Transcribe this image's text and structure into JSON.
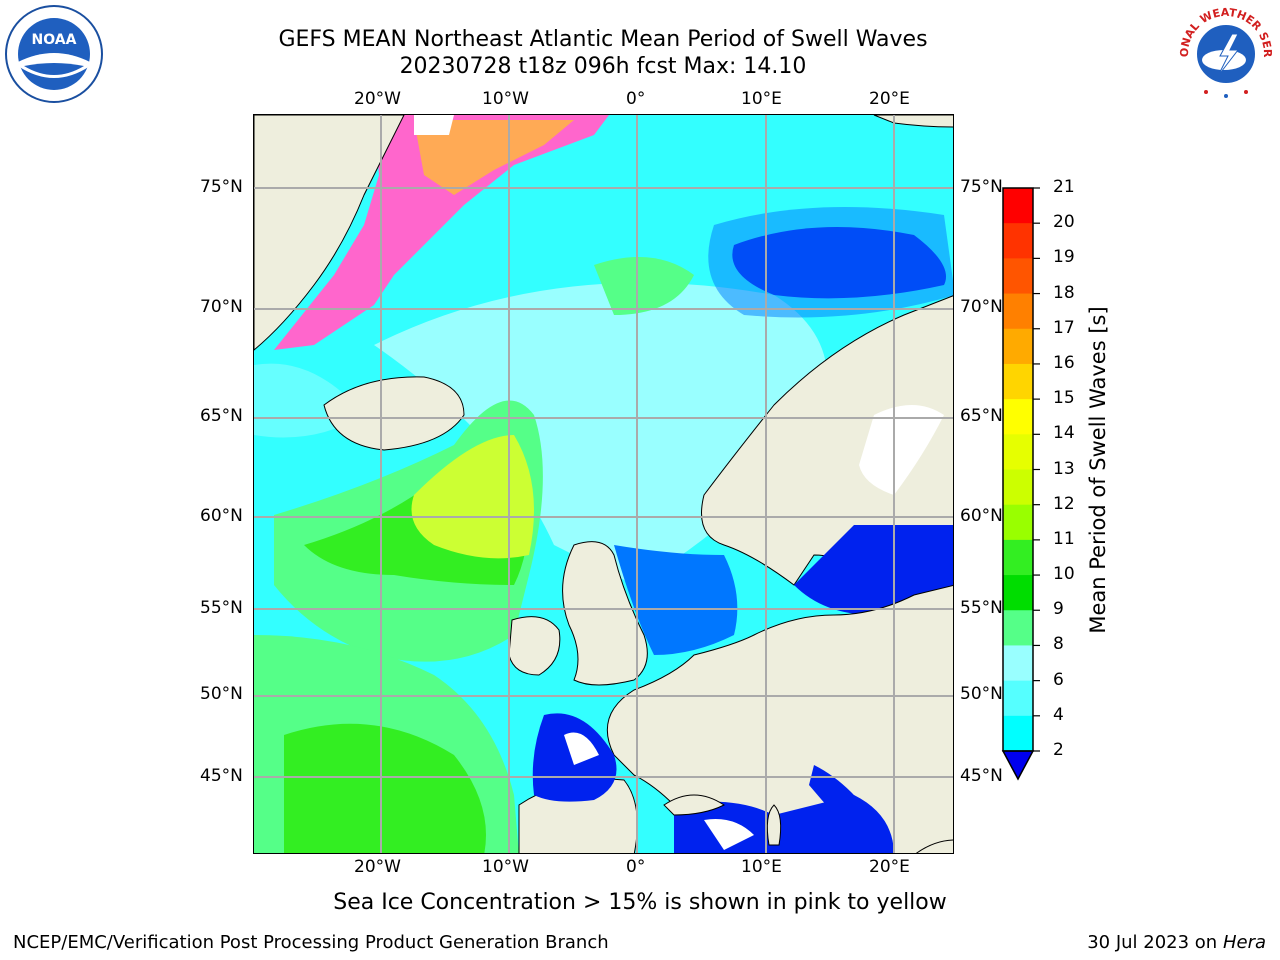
{
  "title": {
    "line1": "GEFS MEAN Northeast Atlantic Mean Period of Swell Waves",
    "line2": "20230728 t18z 096h fcst   Max: 14.10"
  },
  "axes": {
    "lon_top": [
      "20°W",
      "10°W",
      "0°",
      "10°E",
      "20°E"
    ],
    "lon_bottom": [
      "20°W",
      "10°W",
      "0°",
      "10°E",
      "20°E"
    ],
    "lat_left": [
      "75°N",
      "70°N",
      "65°N",
      "60°N",
      "55°N",
      "50°N",
      "45°N"
    ],
    "lat_right": [
      "75°N",
      "70°N",
      "65°N",
      "60°N",
      "55°N",
      "50°N",
      "45°N"
    ]
  },
  "colorbar": {
    "title": "Mean Period of Swell Waves [s]",
    "ticks": [
      "21",
      "20",
      "19",
      "18",
      "17",
      "16",
      "15",
      "14",
      "13",
      "12",
      "11",
      "10",
      "9",
      "8",
      "6",
      "4",
      "2"
    ],
    "colors": [
      "#ff0000",
      "#ff3300",
      "#ff5500",
      "#ff8000",
      "#ffaa00",
      "#ffd500",
      "#ffff00",
      "#e6ff00",
      "#ccff00",
      "#99ff00",
      "#33ee22",
      "#00dd00",
      "#55ff88",
      "#99ffff",
      "#55ffff",
      "#00ffff",
      "#0077ff"
    ],
    "extend_color": "#0000ee"
  },
  "note": "Sea Ice Concentration > 15% is shown in pink to yellow",
  "footer": {
    "left": "NCEP/EMC/Verification Post Processing Product Generation Branch",
    "right_date": "30 Jul 2023 on ",
    "right_host": "Hera"
  },
  "logos": {
    "noaa": "NOAA",
    "nws": "NATIONAL WEATHER SERVICE"
  },
  "colors": {
    "land": "#eeeedd",
    "ocean_base": "#33ffff",
    "grid": "#aaaaaa"
  }
}
